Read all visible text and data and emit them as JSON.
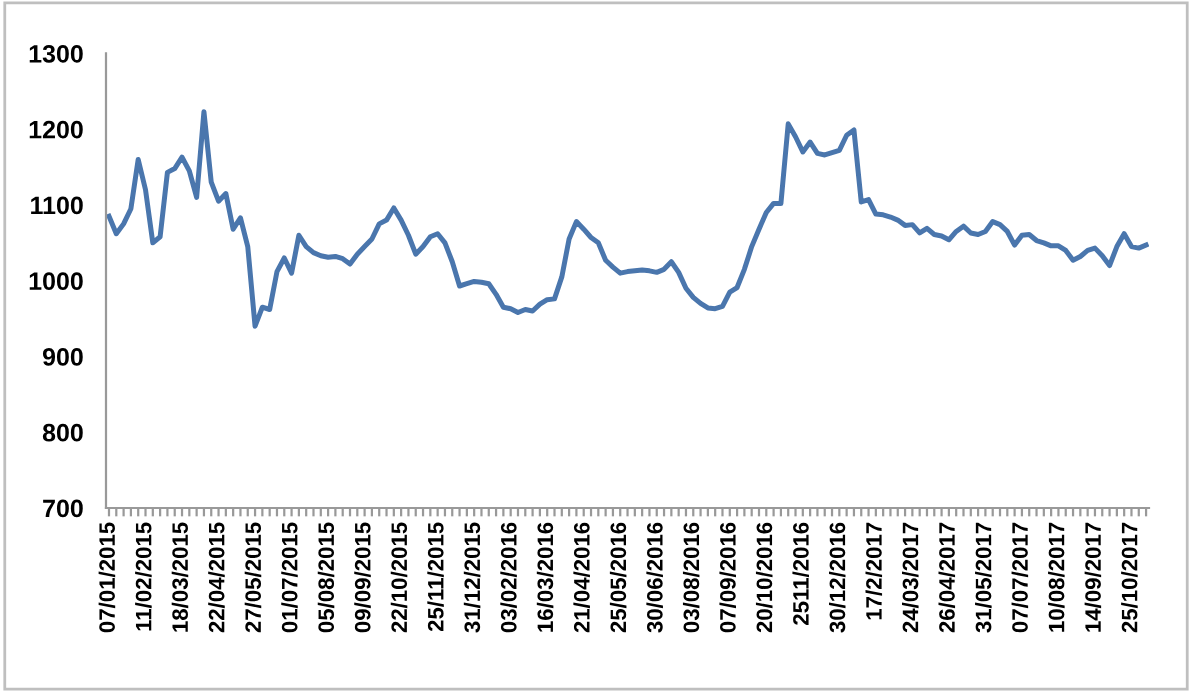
{
  "chart_data": {
    "type": "line",
    "categories": [
      "07/01/2015",
      null,
      null,
      null,
      null,
      "11/02/2015",
      null,
      null,
      null,
      null,
      "18/03/2015",
      null,
      null,
      null,
      null,
      "22/04/2015",
      null,
      null,
      null,
      null,
      "27/05/2015",
      null,
      null,
      null,
      null,
      "01/07/2015",
      null,
      null,
      null,
      null,
      "05/08/2015",
      null,
      null,
      null,
      null,
      "09/09/2015",
      null,
      null,
      null,
      null,
      "22/10/2015",
      null,
      null,
      null,
      null,
      "25/11/2015",
      null,
      null,
      null,
      null,
      "31/12/2015",
      null,
      null,
      null,
      null,
      "03/02/2016",
      null,
      null,
      null,
      null,
      "16/03/2016",
      null,
      null,
      null,
      null,
      "21/04/2016",
      null,
      null,
      null,
      null,
      "25/05/2016",
      null,
      null,
      null,
      null,
      "30/06/2016",
      null,
      null,
      null,
      null,
      "03/08/2016",
      null,
      null,
      null,
      null,
      "07/09/2016",
      null,
      null,
      null,
      null,
      "20/10/2016",
      null,
      null,
      null,
      null,
      "2511/2016",
      null,
      null,
      null,
      null,
      "30/12/2016",
      null,
      null,
      null,
      null,
      "17/2/2017",
      null,
      null,
      null,
      null,
      "24/03/2017",
      null,
      null,
      null,
      null,
      "26/04/2017",
      null,
      null,
      null,
      null,
      "31/05/2017",
      null,
      null,
      null,
      null,
      "07/07/2017",
      null,
      null,
      null,
      null,
      "10/08/2017",
      null,
      null,
      null,
      null,
      "14/09/2017",
      null,
      null,
      null,
      null,
      "25/10/2017",
      null,
      null
    ],
    "series": [
      {
        "color": "#4a76ad",
        "values": [
          1085,
          1062,
          1075,
          1095,
          1160,
          1120,
          1050,
          1058,
          1143,
          1148,
          1163,
          1145,
          1110,
          1223,
          1130,
          1105,
          1115,
          1068,
          1083,
          1045,
          940,
          965,
          962,
          1012,
          1030,
          1010,
          1060,
          1045,
          1037,
          1033,
          1031,
          1032,
          1029,
          1022,
          1035,
          1045,
          1055,
          1075,
          1080,
          1096,
          1080,
          1060,
          1035,
          1045,
          1058,
          1062,
          1050,
          1025,
          993,
          996,
          999,
          998,
          996,
          982,
          965,
          963,
          958,
          962,
          960,
          969,
          975,
          976,
          1005,
          1055,
          1078,
          1068,
          1057,
          1050,
          1027,
          1018,
          1010,
          1012,
          1013,
          1014,
          1013,
          1011,
          1015,
          1025,
          1011,
          990,
          978,
          970,
          964,
          963,
          966,
          985,
          991,
          1015,
          1045,
          1068,
          1090,
          1102,
          1102,
          1207,
          1190,
          1170,
          1183,
          1168,
          1166,
          1169,
          1172,
          1192,
          1199,
          1104,
          1107,
          1088,
          1087,
          1084,
          1080,
          1073,
          1074,
          1063,
          1069,
          1061,
          1059,
          1054,
          1065,
          1072,
          1063,
          1061,
          1065,
          1078,
          1074,
          1065,
          1047,
          1060,
          1061,
          1053,
          1050,
          1046,
          1046,
          1040,
          1027,
          1032,
          1040,
          1043,
          1033,
          1020,
          1045,
          1062,
          1045,
          1043,
          1047
        ]
      }
    ],
    "ylim": [
      700,
      1300
    ],
    "yticks": [
      700,
      800,
      900,
      1000,
      1100,
      1200,
      1300
    ],
    "grid": false,
    "marker": "none",
    "line_style": "solid"
  }
}
